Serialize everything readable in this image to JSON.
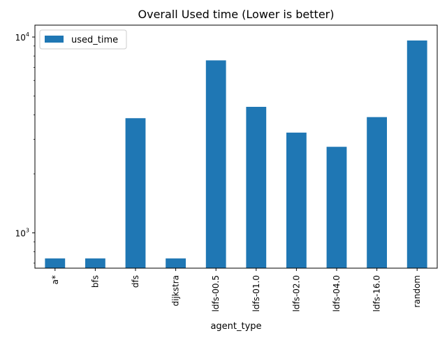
{
  "chart_data": {
    "type": "bar",
    "title": "Overall Used time (Lower is better)",
    "xlabel": "agent_type",
    "ylabel": "",
    "yscale": "log",
    "ylim": [
      660,
      11500
    ],
    "ytick_values": [
      1000,
      10000
    ],
    "ytick_labels": [
      {
        "base": "10",
        "exp": "3"
      },
      {
        "base": "10",
        "exp": "4"
      }
    ],
    "categories": [
      "a*",
      "bfs",
      "dfs",
      "dijkstra",
      "ldfs-00.5",
      "ldfs-01.0",
      "ldfs-02.0",
      "ldfs-04.0",
      "ldfs-16.0",
      "random"
    ],
    "series": [
      {
        "name": "used_time",
        "color": "#1f77b4",
        "values": [
          740,
          740,
          3850,
          740,
          7600,
          4400,
          3250,
          2750,
          3900,
          9600
        ]
      }
    ],
    "legend": {
      "position": "top-left"
    },
    "grid": false
  }
}
